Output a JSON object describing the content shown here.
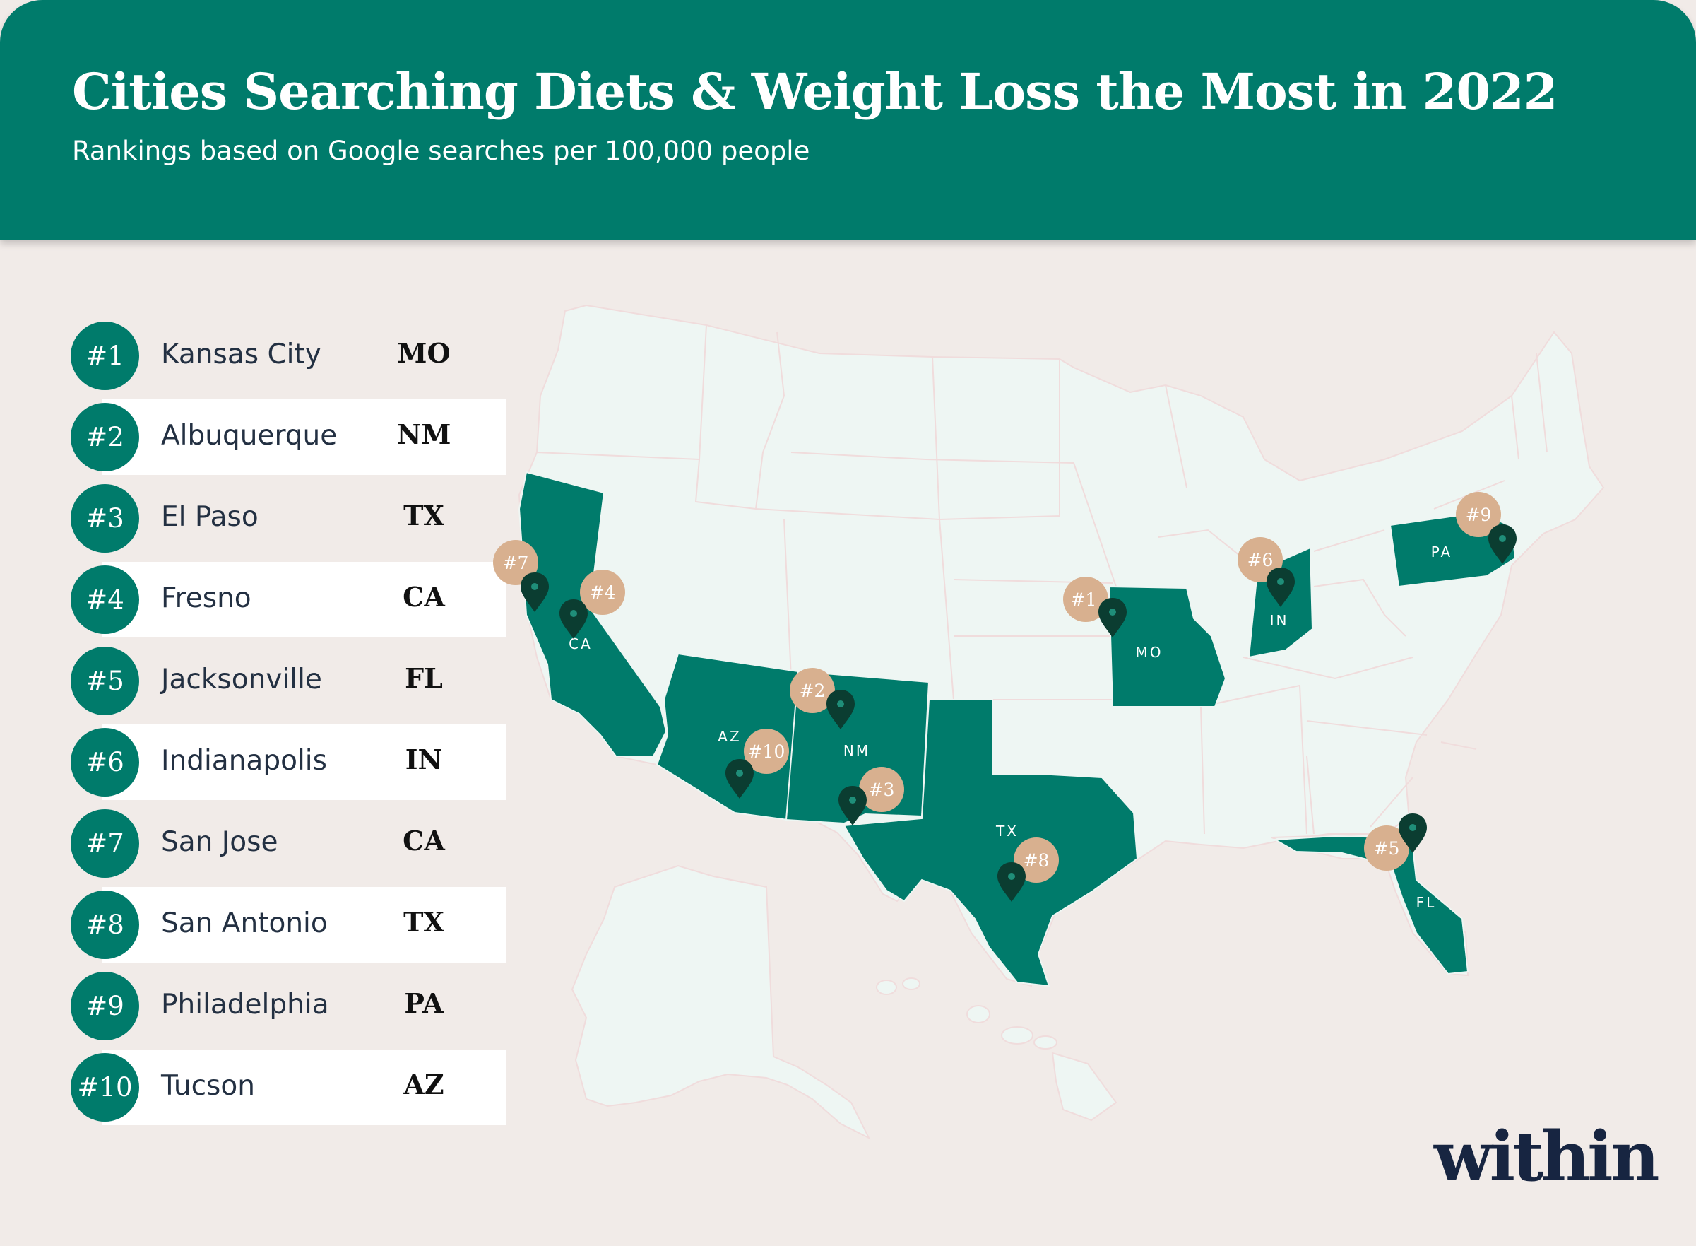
{
  "header": {
    "title": "Cities Searching Diets & Weight Loss the Most in 2022",
    "subtitle": "Rankings based on Google searches per 100,000 people"
  },
  "rankings": [
    {
      "rank": "#1",
      "city": "Kansas City",
      "state": "MO"
    },
    {
      "rank": "#2",
      "city": "Albuquerque",
      "state": "NM"
    },
    {
      "rank": "#3",
      "city": "El Paso",
      "state": "TX"
    },
    {
      "rank": "#4",
      "city": "Fresno",
      "state": "CA"
    },
    {
      "rank": "#5",
      "city": "Jacksonville",
      "state": "FL"
    },
    {
      "rank": "#6",
      "city": "Indianapolis",
      "state": "IN"
    },
    {
      "rank": "#7",
      "city": "San Jose",
      "state": "CA"
    },
    {
      "rank": "#8",
      "city": "San Antonio",
      "state": "TX"
    },
    {
      "rank": "#9",
      "city": "Philadelphia",
      "state": "PA"
    },
    {
      "rank": "#10",
      "city": "Tucson",
      "state": "AZ"
    }
  ],
  "map": {
    "highlighted_states": [
      "CA",
      "AZ",
      "NM",
      "TX",
      "MO",
      "IN",
      "PA",
      "FL"
    ],
    "colors": {
      "highlight": "#007b6b",
      "land": "#eef6f3",
      "borders": "#f2dede",
      "pin": "#0b3d31",
      "bubble": "#d8b08f"
    }
  },
  "logo": {
    "text": "within"
  }
}
